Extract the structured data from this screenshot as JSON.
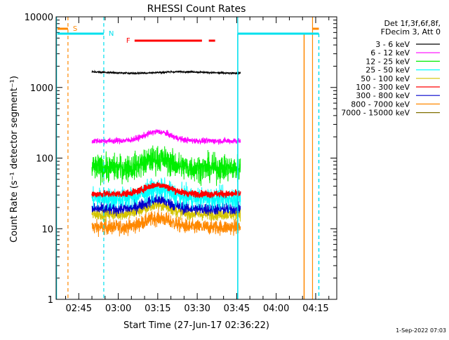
{
  "chart_data": {
    "type": "line",
    "title": "RHESSI Count Rates",
    "xlabel": "Start Time (27-Jun-17 02:36:22)",
    "ylabel": "Count Rate (s⁻¹ detector segment⁻¹)",
    "y_scale": "log",
    "ylim": [
      1,
      10000
    ],
    "y_ticks": [
      "1",
      "10",
      "100",
      "1000",
      "10000"
    ],
    "x_ticks": [
      "02:45",
      "03:00",
      "03:15",
      "03:30",
      "03:45",
      "04:00",
      "04:15"
    ],
    "x_tick_minutes": [
      45,
      60,
      75,
      90,
      105,
      120,
      135
    ],
    "xlim_minutes": [
      36.4,
      143.0
    ],
    "data_window_minutes": [
      50.0,
      106.4
    ],
    "legend_title": [
      "Det 1f,3f,6f,8f,",
      "FDecim 3, Att 0"
    ],
    "legend_placement": "right, outside plot",
    "series": [
      {
        "name": "3 - 6 keV",
        "color": "#000000",
        "level": 1630,
        "noise": 0.012
      },
      {
        "name": "6 - 12 keV",
        "color": "#ff00ff",
        "level": 175,
        "noise": 0.04
      },
      {
        "name": "12 - 25 keV",
        "color": "#00ee00",
        "level": 72,
        "noise": 0.18
      },
      {
        "name": "25 - 50 keV",
        "color": "#00ffff",
        "level": 27,
        "noise": 0.14
      },
      {
        "name": "50 - 100 keV",
        "color": "#d4c400",
        "level": 16,
        "noise": 0.08
      },
      {
        "name": "100 - 300 keV",
        "color": "#ff0000",
        "level": 31,
        "noise": 0.045
      },
      {
        "name": "300 - 800 keV",
        "color": "#0000cc",
        "level": 19,
        "noise": 0.08
      },
      {
        "name": "800 - 7000 keV",
        "color": "#ff8800",
        "level": 10.5,
        "noise": 0.1
      },
      {
        "name": "7000 - 15000 keV",
        "color": "#807000",
        "level": 0,
        "noise": 0
      }
    ],
    "attenuator_lines": [
      {
        "label": "S",
        "color": "#ff8800",
        "start_min": 40.9
      },
      {
        "label": "N",
        "color": "#00e0ee",
        "start_min": 54.5
      },
      {
        "label": "",
        "color": "#00e0ee",
        "start_min": 105.4
      },
      {
        "label": "",
        "color": "#ff8800",
        "start_min": 133.8
      }
    ],
    "flare_flag": {
      "label": "F",
      "color": "#ff0000",
      "segments_min": [
        [
          66.2,
          91.8
        ],
        [
          94.4,
          96.8
        ]
      ]
    },
    "footer_timestamp": "1-Sep-2022 07:03"
  }
}
